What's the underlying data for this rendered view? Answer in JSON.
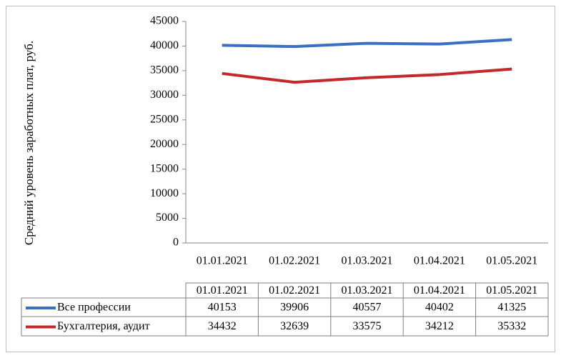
{
  "chart_data": {
    "type": "line",
    "y_label": "Средний уровень заработных плат, руб.",
    "categories": [
      "01.01.2021",
      "01.02.2021",
      "01.03.2021",
      "01.04.2021",
      "01.05.2021"
    ],
    "series": [
      {
        "name": "Все профессии",
        "color": "#3a6fc4",
        "values": [
          40153,
          39906,
          40557,
          40402,
          41325
        ]
      },
      {
        "name": "Бухгалтерия, аудит",
        "color": "#c3282b",
        "values": [
          34432,
          32639,
          33575,
          34212,
          35332
        ]
      }
    ],
    "ylim": [
      0,
      45000
    ],
    "yticks": [
      0,
      5000,
      10000,
      15000,
      20000,
      25000,
      30000,
      35000,
      40000,
      45000
    ],
    "grid": false,
    "data_table": true
  }
}
